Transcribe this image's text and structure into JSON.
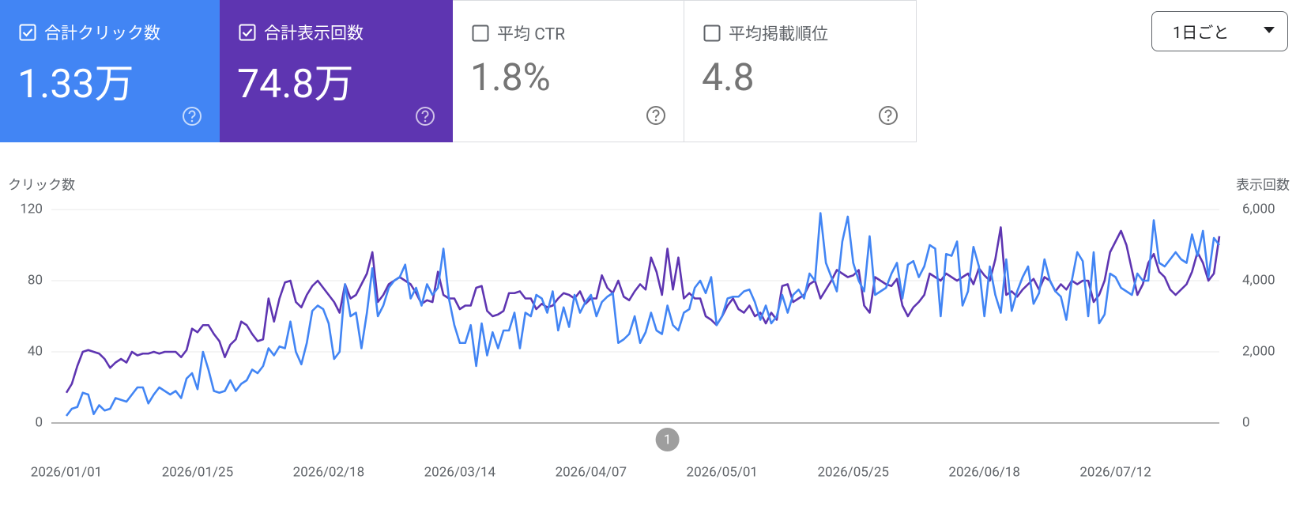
{
  "cards": [
    {
      "label": "合計クリック数",
      "value": "1.33万",
      "checked": true,
      "color": "#4285f4"
    },
    {
      "label": "合計表示回数",
      "value": "74.8万",
      "checked": true,
      "color": "#5e35b1"
    },
    {
      "label": "平均 CTR",
      "value": "1.8%",
      "checked": false,
      "color": "#ffffff"
    },
    {
      "label": "平均掲載順位",
      "value": "4.8",
      "checked": false,
      "color": "#ffffff"
    }
  ],
  "dropdown": "1日ごと",
  "chart_data": {
    "type": "line",
    "y_label": "クリック数",
    "y2_label": "表示回数",
    "categories": [
      "2026/01/01",
      null,
      null,
      null,
      null,
      null,
      null,
      null,
      null,
      null,
      null,
      null,
      null,
      null,
      null,
      null,
      null,
      null,
      null,
      null,
      null,
      null,
      null,
      null,
      "2026/01/25",
      null,
      null,
      null,
      null,
      null,
      null,
      null,
      null,
      null,
      null,
      null,
      null,
      null,
      null,
      null,
      null,
      null,
      null,
      null,
      null,
      null,
      null,
      null,
      "2026/02/18",
      null,
      null,
      null,
      null,
      null,
      null,
      null,
      null,
      null,
      null,
      null,
      null,
      null,
      null,
      null,
      null,
      null,
      null,
      null,
      null,
      null,
      null,
      null,
      "2026/03/14",
      null,
      null,
      null,
      null,
      null,
      null,
      null,
      null,
      null,
      null,
      null,
      null,
      null,
      null,
      null,
      null,
      null,
      null,
      null,
      null,
      null,
      null,
      null,
      "2026/04/07",
      null,
      null,
      null,
      null,
      null,
      null,
      null,
      null,
      null,
      null,
      null,
      null,
      null,
      null,
      null,
      null,
      null,
      null,
      null,
      null,
      null,
      null,
      null,
      "2026/05/01",
      null,
      null,
      null,
      null,
      null,
      null,
      null,
      null,
      null,
      null,
      null,
      null,
      null,
      null,
      null,
      null,
      null,
      null,
      null,
      null,
      null,
      null,
      null,
      "2026/05/25",
      null,
      null,
      null,
      null,
      null,
      null,
      null,
      null,
      null,
      null,
      null,
      null,
      null,
      null,
      null,
      null,
      null,
      null,
      null,
      null,
      null,
      null,
      null,
      "2026/06/18",
      null,
      null,
      null,
      null,
      null,
      null,
      null,
      null,
      null,
      null,
      null,
      null,
      null,
      null,
      null,
      null,
      null,
      null,
      null,
      null,
      null,
      null,
      null,
      "2026/07/12",
      null,
      null,
      null,
      null,
      null,
      null,
      null,
      null,
      null,
      null,
      null,
      null,
      null,
      null,
      null,
      null,
      null,
      null,
      null
    ],
    "series": [
      {
        "name": "合計表示回数",
        "color": "#5e35b1",
        "axis": "y2",
        "values": [
          850,
          1100,
          1600,
          2000,
          2050,
          2000,
          1950,
          1800,
          1550,
          1700,
          1800,
          1700,
          2000,
          1900,
          1950,
          1950,
          2000,
          1950,
          2000,
          2000,
          2000,
          1850,
          2050,
          2650,
          2550,
          2750,
          2750,
          2500,
          2300,
          1850,
          2200,
          2350,
          2850,
          2750,
          2500,
          2300,
          2350,
          3500,
          2850,
          3500,
          3950,
          4000,
          3400,
          3250,
          3600,
          3850,
          4000,
          3800,
          3600,
          3400,
          3100,
          3900,
          3500,
          3600,
          3900,
          4200,
          4800,
          3400,
          3600,
          3900,
          4000,
          4100,
          4000,
          3900,
          3650,
          3350,
          3450,
          3400,
          4250,
          3600,
          3500,
          3500,
          3200,
          3300,
          3300,
          3800,
          3850,
          3150,
          3000,
          3050,
          3150,
          3650,
          3650,
          3700,
          3500,
          3500,
          3200,
          3350,
          3250,
          3300,
          3500,
          3650,
          3600,
          3500,
          3700,
          3350,
          3500,
          3500,
          4150,
          3800,
          3650,
          4000,
          3550,
          3450,
          3700,
          3900,
          3750,
          4650,
          4250,
          3600,
          4900,
          3750,
          4650,
          3500,
          3650,
          3500,
          3500,
          3000,
          2900,
          2750,
          3000,
          3300,
          3500,
          3200,
          3100,
          3300,
          3000,
          3100,
          2800,
          3100,
          2900,
          3850,
          3900,
          3400,
          3500,
          3600,
          3900,
          4000,
          3500,
          3750,
          4000,
          4300,
          4200,
          4100,
          4150,
          4300,
          3300,
          3100,
          4100,
          4000,
          3900,
          3850,
          4050,
          3300,
          3000,
          3250,
          3400,
          3600,
          4200,
          4100,
          4000,
          4200,
          4100,
          4000,
          4100,
          4200,
          3900,
          4350,
          4150,
          4000,
          4600,
          5500,
          3600,
          3700,
          3550,
          3750,
          3900,
          4050,
          3750,
          4100,
          4000,
          3700,
          3900,
          3750,
          4000,
          3900,
          4000,
          4000,
          3400,
          3600,
          4000,
          4800,
          5100,
          5400,
          5000,
          4300,
          3600,
          3900,
          4500,
          4750,
          4250,
          4100,
          3750,
          3600,
          3750,
          3900,
          4250,
          4800,
          4500,
          4000,
          4200,
          5250
        ]
      },
      {
        "name": "合計クリック数",
        "color": "#4285f4",
        "axis": "y",
        "values": [
          4,
          8,
          9,
          17,
          16,
          5,
          10,
          7,
          8,
          14,
          13,
          12,
          16,
          20,
          20,
          11,
          16,
          20,
          18,
          16,
          18,
          14,
          25,
          28,
          19,
          40,
          30,
          18,
          17,
          18,
          24,
          18,
          22,
          24,
          30,
          28,
          32,
          42,
          38,
          43,
          42,
          57,
          40,
          33,
          45,
          63,
          66,
          64,
          56,
          36,
          40,
          78,
          60,
          62,
          42,
          62,
          87,
          60,
          66,
          76,
          80,
          82,
          89,
          70,
          76,
          66,
          78,
          72,
          76,
          98,
          70,
          55,
          45,
          45,
          55,
          32,
          56,
          38,
          51,
          42,
          52,
          52,
          62,
          42,
          62,
          60,
          72,
          70,
          62,
          74,
          52,
          65,
          54,
          72,
          62,
          68,
          72,
          60,
          68,
          71,
          73,
          45,
          47,
          50,
          60,
          45,
          51,
          62,
          52,
          50,
          66,
          55,
          52,
          62,
          64,
          76,
          80,
          73,
          82,
          55,
          60,
          70,
          71,
          71,
          74,
          75,
          68,
          58,
          66,
          56,
          60,
          72,
          62,
          72,
          75,
          70,
          84,
          80,
          118,
          90,
          82,
          74,
          102,
          116,
          90,
          80,
          74,
          105,
          72,
          74,
          76,
          84,
          90,
          70,
          89,
          91,
          82,
          88,
          100,
          98,
          60,
          95,
          94,
          102,
          66,
          74,
          99,
          88,
          60,
          88,
          72,
          62,
          92,
          63,
          74,
          82,
          88,
          67,
          73,
          92,
          80,
          74,
          71,
          58,
          80,
          96,
          91,
          60,
          96,
          56,
          61,
          84,
          82,
          76,
          74,
          72,
          84,
          80,
          80,
          114,
          90,
          88,
          92,
          96,
          92,
          90,
          106,
          94,
          108,
          82,
          104,
          100
        ]
      }
    ],
    "ylim": [
      0,
      120
    ],
    "yticks": [
      0,
      40,
      80,
      120
    ],
    "y2lim": [
      0,
      6000
    ],
    "y2ticks": [
      0,
      {
        "value": 2000,
        "label": "2,000"
      },
      {
        "value": 4000,
        "label": "4,000"
      },
      {
        "value": 6000,
        "label": "6,000"
      }
    ],
    "grid": true,
    "annotations": [
      {
        "text": "1",
        "category_index": 110
      }
    ]
  }
}
